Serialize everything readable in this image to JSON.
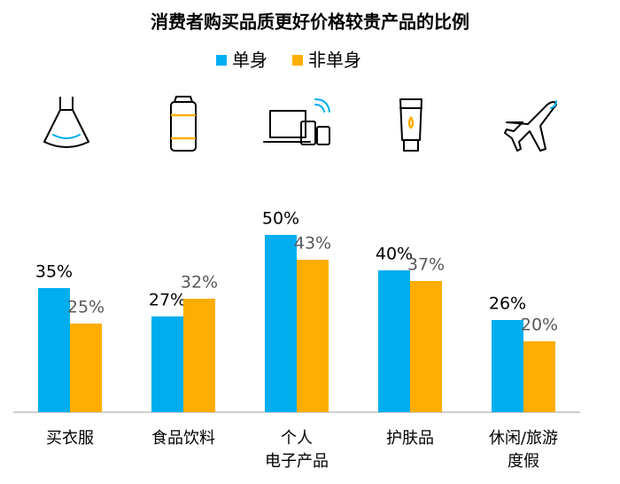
{
  "chart_data": {
    "type": "bar",
    "title": "消费者购买品质更好价格较贵产品的比例",
    "categories": [
      "买衣服",
      "食品饮料",
      "个人\n电子产品",
      "护肤品",
      "休闲/旅游\n度假"
    ],
    "series": [
      {
        "name": "单身",
        "color": "#00AEEF",
        "values": [
          35,
          27,
          50,
          40,
          26
        ],
        "value_labels": [
          "35%",
          "27%",
          "50%",
          "40%",
          "26%"
        ],
        "label_color": "#000000"
      },
      {
        "name": "非单身",
        "color": "#FFAD00",
        "values": [
          25,
          32,
          43,
          37,
          20
        ],
        "value_labels": [
          "25%",
          "32%",
          "43%",
          "37%",
          "20%"
        ],
        "label_color": "#595959"
      }
    ],
    "ylim": [
      0,
      50
    ]
  }
}
